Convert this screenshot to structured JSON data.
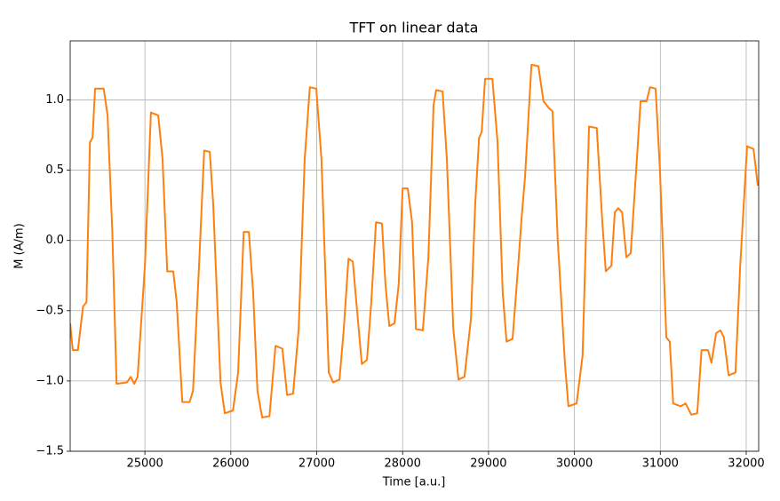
{
  "chart_data": {
    "type": "line",
    "title": "TFT on linear data",
    "xlabel": "Time [a.u.]",
    "ylabel": "M (A/m)",
    "color": "#ff7f0e",
    "grid": true,
    "xlim": [
      24130,
      32145
    ],
    "ylim": [
      -1.5,
      1.42
    ],
    "xticks": [
      25000,
      26000,
      27000,
      28000,
      29000,
      30000,
      31000,
      32000
    ],
    "yticks": [
      {
        "value": -1.5,
        "label": "−1.5"
      },
      {
        "value": -1.0,
        "label": "−1.0"
      },
      {
        "value": -0.5,
        "label": "−0.5"
      },
      {
        "value": 0,
        "label": "0.0"
      },
      {
        "value": 0.5,
        "label": "0.5"
      },
      {
        "value": 1.0,
        "label": "1.0"
      }
    ],
    "x": [
      24130,
      24160,
      24220,
      24280,
      24320,
      24360,
      24390,
      24420,
      24520,
      24565,
      24620,
      24670,
      24790,
      24835,
      24875,
      24915,
      25000,
      25070,
      25155,
      25205,
      25260,
      25330,
      25370,
      25435,
      25520,
      25560,
      25630,
      25690,
      25755,
      25795,
      25880,
      25930,
      26025,
      26085,
      26150,
      26210,
      26260,
      26310,
      26365,
      26450,
      26520,
      26600,
      26655,
      26725,
      26790,
      26860,
      26920,
      26995,
      27055,
      27140,
      27190,
      27265,
      27315,
      27370,
      27420,
      27470,
      27525,
      27585,
      27635,
      27690,
      27760,
      27800,
      27845,
      27905,
      27955,
      28000,
      28060,
      28110,
      28155,
      28235,
      28300,
      28360,
      28390,
      28465,
      28515,
      28590,
      28650,
      28720,
      28795,
      28845,
      28890,
      28920,
      28960,
      29045,
      29105,
      29165,
      29210,
      29280,
      29345,
      29385,
      29425,
      29500,
      29580,
      29640,
      29705,
      29745,
      29805,
      29890,
      29930,
      30025,
      30095,
      30170,
      30260,
      30325,
      30365,
      30430,
      30470,
      30510,
      30555,
      30605,
      30655,
      30720,
      30770,
      30840,
      30880,
      30945,
      30995,
      31070,
      31110,
      31150,
      31235,
      31295,
      31360,
      31430,
      31480,
      31555,
      31595,
      31650,
      31700,
      31740,
      31795,
      31875,
      31930,
      32010,
      32085,
      32135
    ],
    "values": [
      -0.59,
      -0.78,
      -0.78,
      -0.47,
      -0.44,
      0.7,
      0.73,
      1.08,
      1.08,
      0.89,
      0.07,
      -1.02,
      -1.01,
      -0.97,
      -1.02,
      -0.97,
      -0.18,
      0.91,
      0.89,
      0.58,
      -0.22,
      -0.22,
      -0.44,
      -1.15,
      -1.15,
      -1.07,
      -0.18,
      0.64,
      0.63,
      0.26,
      -1.01,
      -1.23,
      -1.21,
      -0.94,
      0.06,
      0.06,
      -0.37,
      -1.07,
      -1.26,
      -1.25,
      -0.75,
      -0.77,
      -1.1,
      -1.09,
      -0.63,
      0.58,
      1.09,
      1.08,
      0.58,
      -0.94,
      -1.01,
      -0.99,
      -0.63,
      -0.13,
      -0.15,
      -0.5,
      -0.88,
      -0.85,
      -0.44,
      0.13,
      0.12,
      -0.31,
      -0.61,
      -0.59,
      -0.31,
      0.37,
      0.37,
      0.13,
      -0.63,
      -0.64,
      -0.12,
      0.96,
      1.07,
      1.06,
      0.58,
      -0.63,
      -0.99,
      -0.97,
      -0.56,
      0.26,
      0.73,
      0.77,
      1.15,
      1.15,
      0.7,
      -0.37,
      -0.72,
      -0.7,
      -0.18,
      0.16,
      0.45,
      1.25,
      1.24,
      0.99,
      0.94,
      0.92,
      0.01,
      -0.88,
      -1.18,
      -1.16,
      -0.82,
      0.81,
      0.8,
      0.13,
      -0.22,
      -0.18,
      0.2,
      0.23,
      0.2,
      -0.12,
      -0.09,
      0.51,
      0.99,
      0.99,
      1.09,
      1.08,
      0.51,
      -0.69,
      -0.72,
      -1.16,
      -1.18,
      -1.16,
      -1.24,
      -1.23,
      -0.78,
      -0.78,
      -0.87,
      -0.66,
      -0.64,
      -0.69,
      -0.96,
      -0.94,
      -0.18,
      0.67,
      0.65,
      0.39
    ]
  }
}
